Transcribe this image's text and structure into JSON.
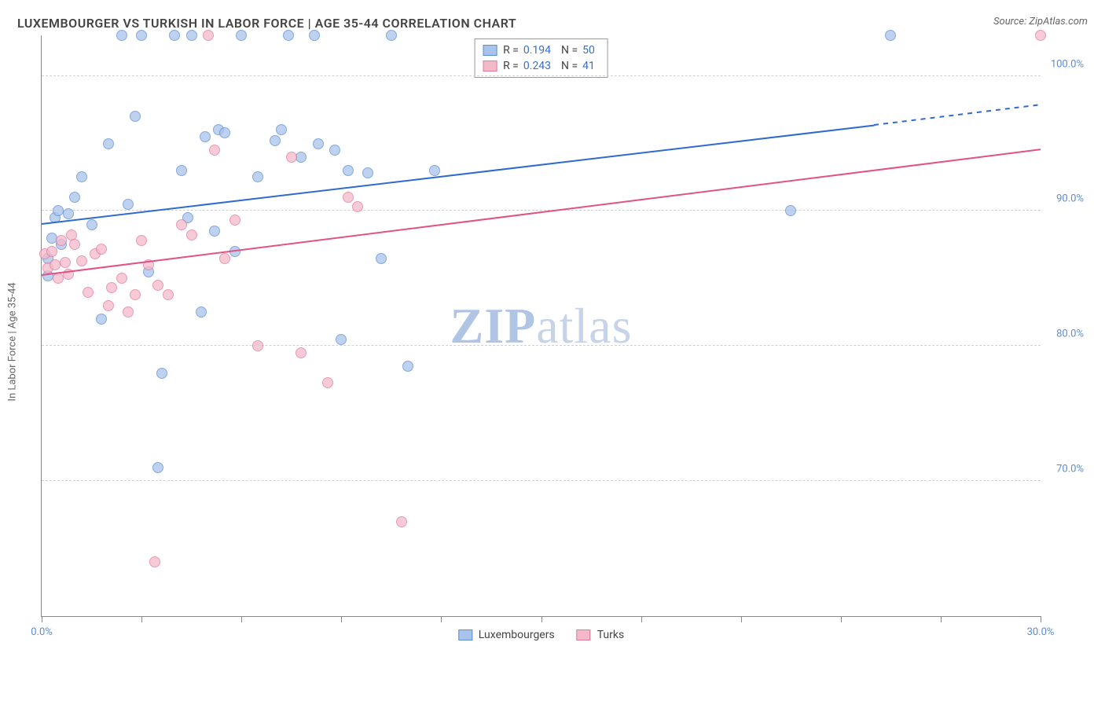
{
  "header": {
    "title": "LUXEMBOURGER VS TURKISH IN LABOR FORCE | AGE 35-44 CORRELATION CHART",
    "source": "Source: ZipAtlas.com"
  },
  "chart": {
    "type": "scatter",
    "ylabel": "In Labor Force | Age 35-44",
    "background_color": "#ffffff",
    "grid_color": "#d0d0d0",
    "axis_color": "#888888",
    "xlim": [
      0,
      30
    ],
    "ylim": [
      60,
      103
    ],
    "xticks": [
      0,
      3,
      6,
      9,
      12,
      15,
      18,
      21,
      24,
      27,
      30
    ],
    "xtick_labels": {
      "0": "0.0%",
      "30": "30.0%"
    },
    "yticks": [
      70,
      80,
      90,
      100
    ],
    "ytick_labels": {
      "70": "70.0%",
      "80": "80.0%",
      "90": "90.0%",
      "100": "100.0%"
    },
    "tick_label_color": "#5b8dd6",
    "label_fontsize": 13,
    "title_fontsize": 16,
    "marker_radius": 7,
    "marker_opacity": 0.75,
    "series": [
      {
        "name": "Luxembourgers",
        "color_fill": "#a9c4ec",
        "color_stroke": "#5b8dd6",
        "R": "0.194",
        "N": "50",
        "trend": {
          "x1": 0,
          "y1": 89,
          "x2": 25,
          "y2": 96.3,
          "x3": 30,
          "y3": 97.8,
          "color": "#2f6ad0",
          "width": 2
        },
        "points": [
          [
            0.2,
            85.2
          ],
          [
            0.3,
            88
          ],
          [
            0.4,
            89.5
          ],
          [
            0.5,
            90
          ],
          [
            0.6,
            87.5
          ],
          [
            0.8,
            89.8
          ],
          [
            1.0,
            91
          ],
          [
            0.2,
            86.5
          ],
          [
            1.2,
            92.5
          ],
          [
            1.5,
            89
          ],
          [
            1.8,
            82
          ],
          [
            2.0,
            95
          ],
          [
            2.4,
            103
          ],
          [
            2.6,
            90.5
          ],
          [
            2.8,
            97
          ],
          [
            3.0,
            103
          ],
          [
            3.2,
            85.5
          ],
          [
            3.5,
            71
          ],
          [
            3.6,
            78
          ],
          [
            4.0,
            103
          ],
          [
            4.2,
            93
          ],
          [
            4.4,
            89.5
          ],
          [
            4.5,
            103
          ],
          [
            4.8,
            82.5
          ],
          [
            4.9,
            95.5
          ],
          [
            5.2,
            88.5
          ],
          [
            5.3,
            96
          ],
          [
            5.5,
            95.8
          ],
          [
            5.8,
            87
          ],
          [
            6.0,
            103
          ],
          [
            6.5,
            92.5
          ],
          [
            7.0,
            95.2
          ],
          [
            7.2,
            96
          ],
          [
            7.4,
            103
          ],
          [
            7.8,
            94
          ],
          [
            8.2,
            103
          ],
          [
            8.3,
            95
          ],
          [
            8.8,
            94.5
          ],
          [
            9.0,
            80.5
          ],
          [
            9.2,
            93
          ],
          [
            9.8,
            92.8
          ],
          [
            10.2,
            86.5
          ],
          [
            10.5,
            103
          ],
          [
            11.0,
            78.5
          ],
          [
            11.8,
            93
          ],
          [
            22.5,
            90
          ],
          [
            25.5,
            103
          ]
        ]
      },
      {
        "name": "Turks",
        "color_fill": "#f4b9c9",
        "color_stroke": "#e27a9a",
        "R": "0.243",
        "N": "41",
        "trend": {
          "x1": 0,
          "y1": 85.2,
          "x2": 30,
          "y2": 94.5,
          "color": "#e25383",
          "width": 2
        },
        "points": [
          [
            0.1,
            86.8
          ],
          [
            0.2,
            85.8
          ],
          [
            0.3,
            87
          ],
          [
            0.4,
            86
          ],
          [
            0.5,
            85
          ],
          [
            0.6,
            87.8
          ],
          [
            0.7,
            86.2
          ],
          [
            0.8,
            85.3
          ],
          [
            0.9,
            88.2
          ],
          [
            1.0,
            87.5
          ],
          [
            1.2,
            86.3
          ],
          [
            1.4,
            84
          ],
          [
            1.6,
            86.8
          ],
          [
            1.8,
            87.2
          ],
          [
            2.0,
            83
          ],
          [
            2.1,
            84.3
          ],
          [
            2.4,
            85
          ],
          [
            2.6,
            82.5
          ],
          [
            2.8,
            83.8
          ],
          [
            3.0,
            87.8
          ],
          [
            3.2,
            86
          ],
          [
            3.4,
            64
          ],
          [
            3.5,
            84.5
          ],
          [
            3.8,
            83.8
          ],
          [
            4.2,
            89
          ],
          [
            4.5,
            88.2
          ],
          [
            5.0,
            103
          ],
          [
            5.2,
            94.5
          ],
          [
            5.5,
            86.5
          ],
          [
            5.8,
            89.3
          ],
          [
            6.5,
            80
          ],
          [
            7.5,
            94
          ],
          [
            7.8,
            79.5
          ],
          [
            8.6,
            77.3
          ],
          [
            9.2,
            91
          ],
          [
            9.5,
            90.3
          ],
          [
            10.8,
            67
          ],
          [
            30,
            103
          ]
        ]
      }
    ],
    "legend_top": {
      "rows": [
        {
          "swatch": 0,
          "r_label": "R =",
          "r_value": "0.194",
          "n_label": "N =",
          "n_value": "50"
        },
        {
          "swatch": 1,
          "r_label": "R =",
          "r_value": "0.243",
          "n_label": "N =",
          "n_value": "41"
        }
      ]
    },
    "legend_bottom": [
      {
        "swatch": 0,
        "label": "Luxembourgers"
      },
      {
        "swatch": 1,
        "label": "Turks"
      }
    ],
    "watermark": {
      "text_bold": "ZIP",
      "text_rest": "atlas"
    }
  }
}
